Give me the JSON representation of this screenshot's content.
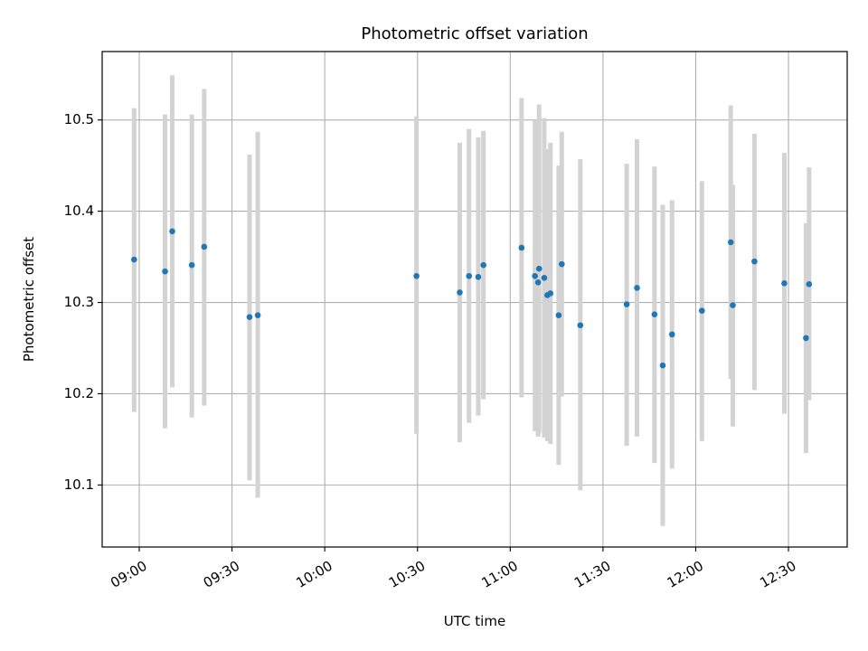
{
  "chart_data": {
    "type": "scatter",
    "title": "Photometric offset variation",
    "xlabel": "UTC time",
    "ylabel": "Photometric offset",
    "x_unit": "UTC time (HH:MM)",
    "xlim": [
      "08:48",
      "12:49"
    ],
    "ylim": [
      10.032,
      10.575
    ],
    "xticks": [
      "09:00",
      "09:30",
      "10:00",
      "10:30",
      "11:00",
      "11:30",
      "12:00",
      "12:30"
    ],
    "yticks": [
      10.1,
      10.2,
      10.3,
      10.4,
      10.5
    ],
    "grid": true,
    "colors": {
      "points": "#1f77b4",
      "errorbars": "#d3d3d3",
      "grid": "#b0b0b0"
    },
    "series": [
      {
        "points": [
          {
            "x": "08:58:20",
            "y": 10.347,
            "ylow": 10.18,
            "yhigh": 10.513
          },
          {
            "x": "09:08:20",
            "y": 10.334,
            "ylow": 10.162,
            "yhigh": 10.506
          },
          {
            "x": "09:10:40",
            "y": 10.378,
            "ylow": 10.207,
            "yhigh": 10.549
          },
          {
            "x": "09:17:00",
            "y": 10.341,
            "ylow": 10.174,
            "yhigh": 10.506
          },
          {
            "x": "09:21:00",
            "y": 10.361,
            "ylow": 10.187,
            "yhigh": 10.534
          },
          {
            "x": "09:35:40",
            "y": 10.284,
            "ylow": 10.105,
            "yhigh": 10.462
          },
          {
            "x": "09:38:20",
            "y": 10.286,
            "ylow": 10.086,
            "yhigh": 10.487
          },
          {
            "x": "10:29:40",
            "y": 10.329,
            "ylow": 10.156,
            "yhigh": 10.504
          },
          {
            "x": "10:43:40",
            "y": 10.311,
            "ylow": 10.147,
            "yhigh": 10.475
          },
          {
            "x": "10:46:40",
            "y": 10.329,
            "ylow": 10.168,
            "yhigh": 10.49
          },
          {
            "x": "10:49:40",
            "y": 10.328,
            "ylow": 10.176,
            "yhigh": 10.481
          },
          {
            "x": "10:51:20",
            "y": 10.341,
            "ylow": 10.194,
            "yhigh": 10.488
          },
          {
            "x": "11:03:40",
            "y": 10.36,
            "ylow": 10.196,
            "yhigh": 10.524
          },
          {
            "x": "11:08:00",
            "y": 10.329,
            "ylow": 10.159,
            "yhigh": 10.5
          },
          {
            "x": "11:09:00",
            "y": 10.322,
            "ylow": 10.153,
            "yhigh": 10.493
          },
          {
            "x": "11:09:20",
            "y": 10.337,
            "ylow": 10.157,
            "yhigh": 10.517
          },
          {
            "x": "11:11:00",
            "y": 10.327,
            "ylow": 10.152,
            "yhigh": 10.502
          },
          {
            "x": "11:12:00",
            "y": 10.308,
            "ylow": 10.148,
            "yhigh": 10.468
          },
          {
            "x": "11:13:00",
            "y": 10.31,
            "ylow": 10.145,
            "yhigh": 10.475
          },
          {
            "x": "11:15:40",
            "y": 10.286,
            "ylow": 10.122,
            "yhigh": 10.45
          },
          {
            "x": "11:16:40",
            "y": 10.342,
            "ylow": 10.197,
            "yhigh": 10.487
          },
          {
            "x": "11:22:40",
            "y": 10.275,
            "ylow": 10.094,
            "yhigh": 10.457
          },
          {
            "x": "11:37:40",
            "y": 10.298,
            "ylow": 10.143,
            "yhigh": 10.452
          },
          {
            "x": "11:41:00",
            "y": 10.316,
            "ylow": 10.153,
            "yhigh": 10.479
          },
          {
            "x": "11:46:40",
            "y": 10.287,
            "ylow": 10.124,
            "yhigh": 10.449
          },
          {
            "x": "11:49:20",
            "y": 10.231,
            "ylow": 10.055,
            "yhigh": 10.407
          },
          {
            "x": "11:52:20",
            "y": 10.265,
            "ylow": 10.118,
            "yhigh": 10.412
          },
          {
            "x": "12:02:00",
            "y": 10.291,
            "ylow": 10.148,
            "yhigh": 10.433
          },
          {
            "x": "12:11:20",
            "y": 10.366,
            "ylow": 10.216,
            "yhigh": 10.516
          },
          {
            "x": "12:12:00",
            "y": 10.297,
            "ylow": 10.164,
            "yhigh": 10.429
          },
          {
            "x": "12:19:00",
            "y": 10.345,
            "ylow": 10.204,
            "yhigh": 10.485
          },
          {
            "x": "12:28:40",
            "y": 10.321,
            "ylow": 10.178,
            "yhigh": 10.464
          },
          {
            "x": "12:35:40",
            "y": 10.261,
            "ylow": 10.135,
            "yhigh": 10.387
          },
          {
            "x": "12:36:40",
            "y": 10.32,
            "ylow": 10.193,
            "yhigh": 10.448
          }
        ]
      }
    ]
  }
}
